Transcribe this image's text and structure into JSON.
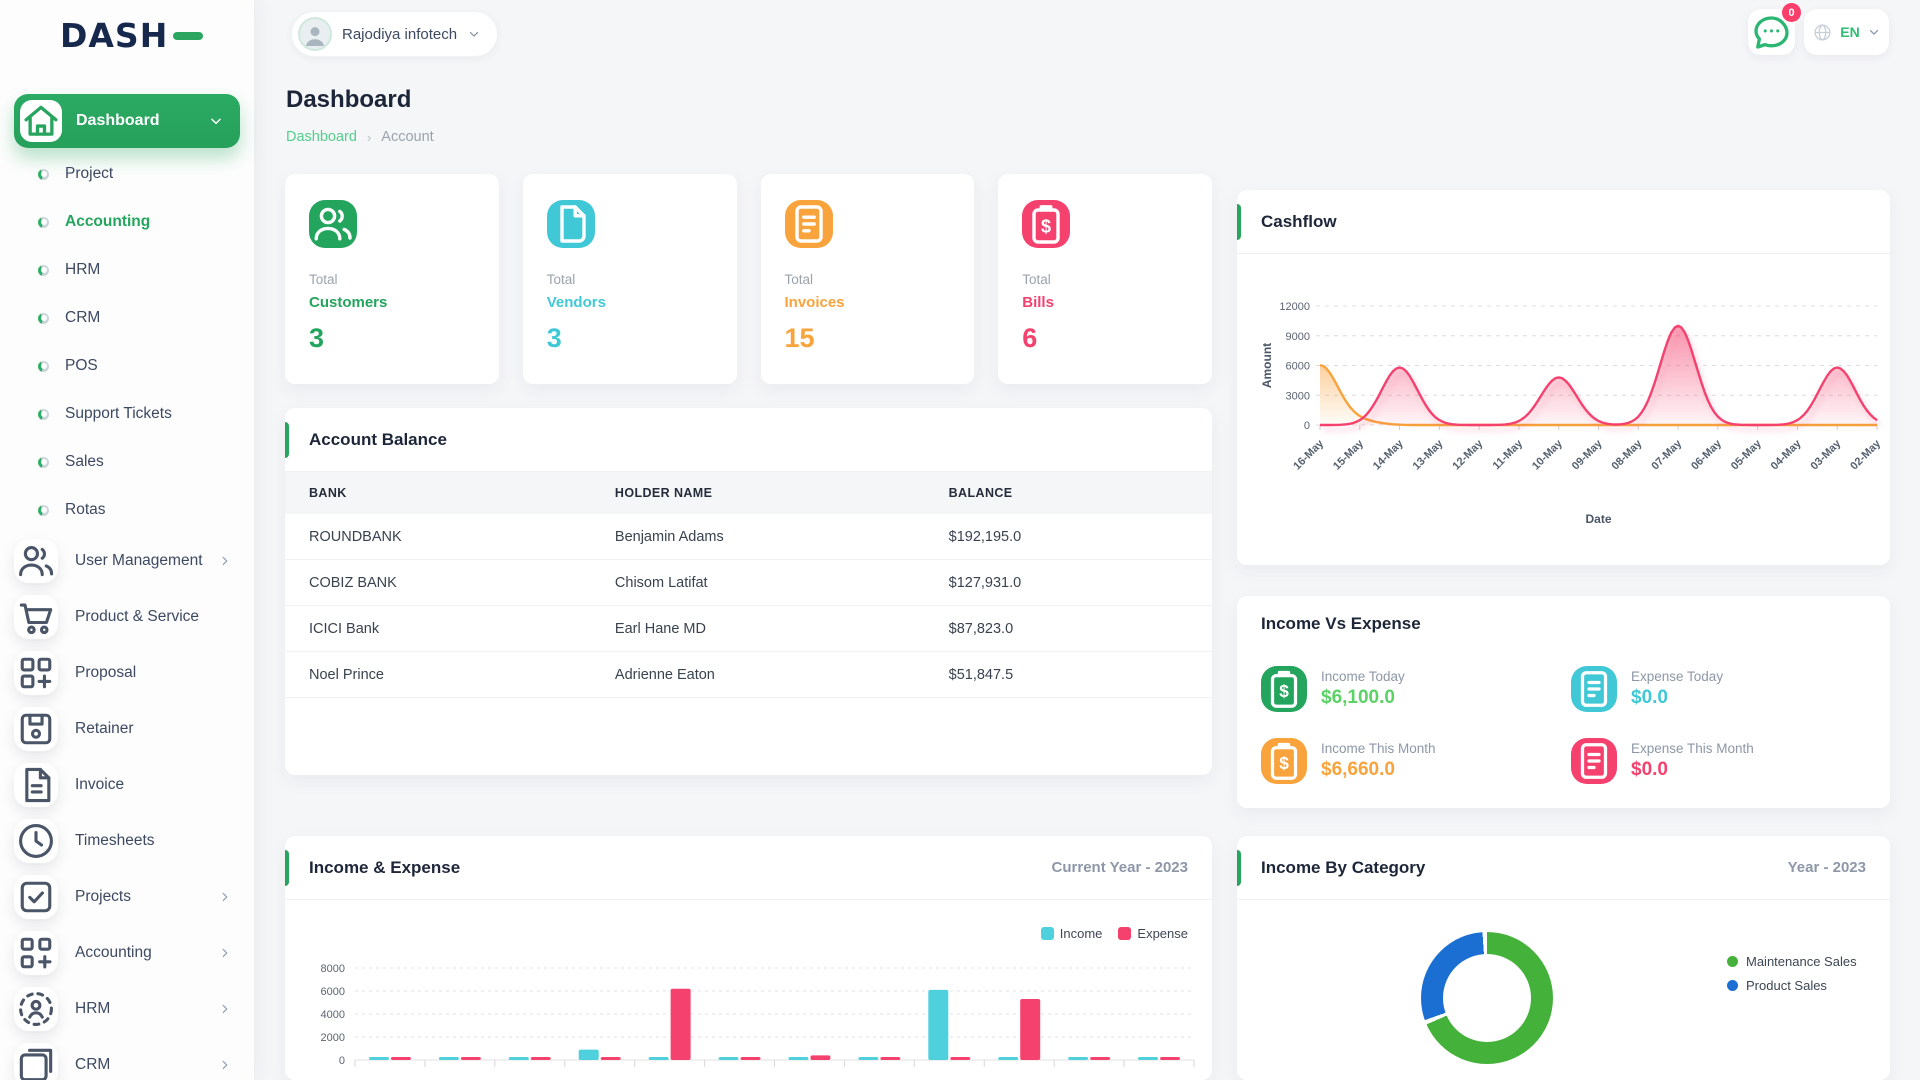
{
  "brand": {
    "name": "DASH",
    "accent_color": "#2ba55f"
  },
  "header": {
    "user_name": "Rajodiya infotech",
    "notification_badge": "0",
    "language": "EN"
  },
  "page": {
    "title": "Dashboard",
    "breadcrumb": {
      "parent": "Dashboard",
      "separator": "›",
      "current": "Account"
    }
  },
  "sidebar": {
    "active_item": "Dashboard",
    "sub_items": [
      {
        "label": "Project",
        "active": false
      },
      {
        "label": "Accounting",
        "active": true
      },
      {
        "label": "HRM",
        "active": false
      },
      {
        "label": "CRM",
        "active": false
      },
      {
        "label": "POS",
        "active": false
      },
      {
        "label": "Support Tickets",
        "active": false
      },
      {
        "label": "Sales",
        "active": false
      },
      {
        "label": "Rotas",
        "active": false
      }
    ],
    "menu_items": [
      {
        "label": "User Management",
        "icon": "users-icon",
        "chevron": true
      },
      {
        "label": "Product & Service",
        "icon": "cart-icon",
        "chevron": false
      },
      {
        "label": "Proposal",
        "icon": "proposal-icon",
        "chevron": false
      },
      {
        "label": "Retainer",
        "icon": "retainer-icon",
        "chevron": false
      },
      {
        "label": "Invoice",
        "icon": "invoice-icon",
        "chevron": false
      },
      {
        "label": "Timesheets",
        "icon": "clock-icon",
        "chevron": false
      },
      {
        "label": "Projects",
        "icon": "projects-icon",
        "chevron": true
      },
      {
        "label": "Accounting",
        "icon": "accounting-icon",
        "chevron": true
      },
      {
        "label": "HRM",
        "icon": "hrm-icon",
        "chevron": true
      },
      {
        "label": "CRM",
        "icon": "crm-icon",
        "chevron": true
      }
    ]
  },
  "stats": [
    {
      "prefix": "Total",
      "label": "Customers",
      "value": "3",
      "color": "#23a55d",
      "icon": "customers-icon"
    },
    {
      "prefix": "Total",
      "label": "Vendors",
      "value": "3",
      "color": "#41c8d6",
      "icon": "vendors-icon"
    },
    {
      "prefix": "Total",
      "label": "Invoices",
      "value": "15",
      "color": "#f8a33c",
      "icon": "invoices-icon"
    },
    {
      "prefix": "Total",
      "label": "Bills",
      "value": "6",
      "color": "#f5416e",
      "icon": "bills-icon"
    }
  ],
  "account_balance": {
    "title": "Account Balance",
    "columns": [
      "BANK",
      "HOLDER NAME",
      "BALANCE"
    ],
    "rows": [
      [
        "ROUNDBANK",
        "Benjamin Adams",
        "$192,195.0"
      ],
      [
        "COBIZ BANK",
        "Chisom Latifat",
        "$127,931.0"
      ],
      [
        "ICICI Bank",
        "Earl Hane MD",
        "$87,823.0"
      ],
      [
        "Noel Prince",
        "Adrienne Eaton",
        "$51,847.5"
      ]
    ]
  },
  "income_vs_expense": {
    "title": "Income Vs Expense",
    "items": [
      {
        "label": "Income Today",
        "value": "$6,100.0",
        "color": "#5bd266",
        "icon_bg": "#23a55d",
        "icon": "income-icon"
      },
      {
        "label": "Expense Today",
        "value": "$0.0",
        "color": "#41c8d6",
        "icon_bg": "#41c8d6",
        "icon": "expense-icon"
      },
      {
        "label": "Income This Month",
        "value": "$6,660.0",
        "color": "#f8a33c",
        "icon_bg": "#f8a33c",
        "icon": "income-icon"
      },
      {
        "label": "Expense This Month",
        "value": "$0.0",
        "color": "#f5416e",
        "icon_bg": "#f5416e",
        "icon": "expense-icon"
      }
    ]
  },
  "chart_data": [
    {
      "id": "cashflow",
      "type": "area",
      "title": "Cashflow",
      "xlabel": "Date",
      "ylabel": "Amount",
      "x": [
        "16-May",
        "15-May",
        "14-May",
        "13-May",
        "12-May",
        "11-May",
        "10-May",
        "09-May",
        "08-May",
        "07-May",
        "06-May",
        "05-May",
        "04-May",
        "03-May",
        "02-May"
      ],
      "ylim": [
        0,
        12000
      ],
      "yticks": [
        0,
        3000,
        6000,
        9000,
        12000
      ],
      "grid": "dashed-horizontal",
      "legend": "none",
      "series": [
        {
          "name": "series-orange",
          "color": "#f8a33c",
          "values": [
            6000,
            400,
            0,
            0,
            0,
            0,
            0,
            0,
            0,
            0,
            0,
            0,
            0,
            0,
            0
          ]
        },
        {
          "name": "series-pink",
          "color": "#f5416e",
          "values": [
            0,
            0,
            5800,
            0,
            0,
            0,
            4800,
            0,
            0,
            10000,
            0,
            0,
            0,
            5800,
            0
          ]
        }
      ]
    },
    {
      "id": "income-expense",
      "type": "bar",
      "title": "Income & Expense",
      "period": "Current Year - 2023",
      "ylim": [
        0,
        8000
      ],
      "yticks": [
        0,
        2000,
        4000,
        6000,
        8000
      ],
      "legend_position": "top-right",
      "grid": "dashed-horizontal",
      "series": [
        {
          "name": "Income",
          "color": "#4fd0dd",
          "values": [
            200,
            100,
            100,
            900,
            100,
            100,
            150,
            100,
            6100,
            100,
            100,
            100
          ]
        },
        {
          "name": "Expense",
          "color": "#f5416e",
          "values": [
            100,
            100,
            100,
            100,
            6200,
            100,
            400,
            100,
            100,
            5300,
            100,
            100
          ]
        }
      ]
    },
    {
      "id": "income-by-category",
      "type": "donut",
      "title": "Income By Category",
      "period": "Year - 2023",
      "labels": [
        "Maintenance Sales",
        "Product Sales"
      ],
      "values_percent": [
        70,
        30
      ],
      "colors": [
        "#44b23a",
        "#1c6fd2"
      ],
      "legend_position": "right"
    }
  ]
}
